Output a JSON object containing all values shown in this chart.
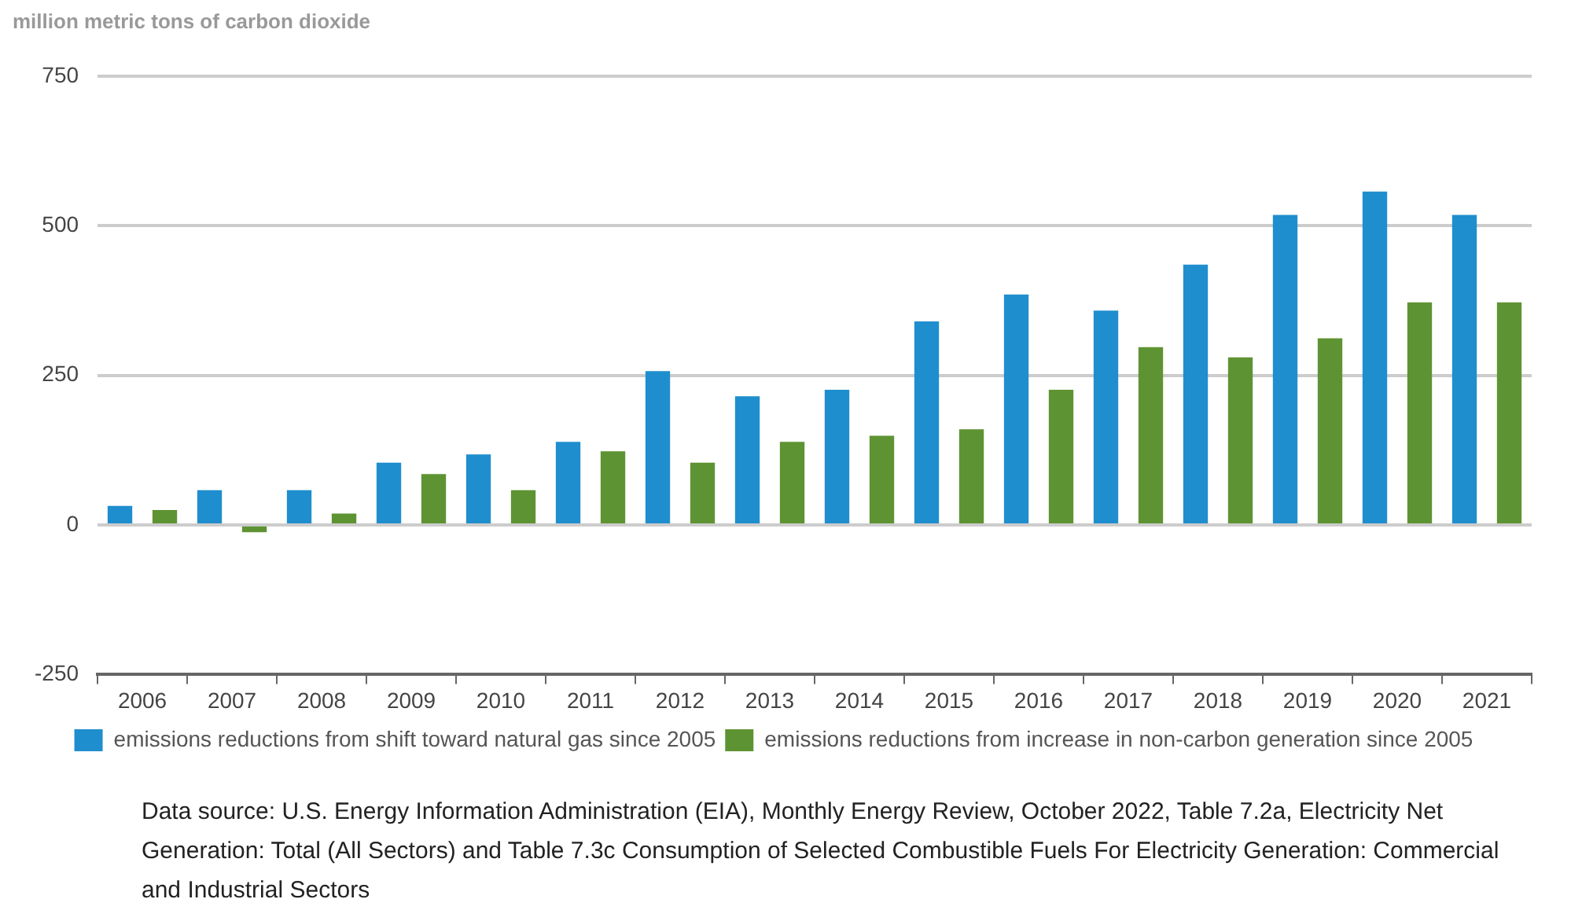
{
  "chart_data": {
    "type": "bar",
    "ylabel": "million metric tons of carbon dioxide",
    "categories": [
      "2006",
      "2007",
      "2008",
      "2009",
      "2010",
      "2011",
      "2012",
      "2013",
      "2014",
      "2015",
      "2016",
      "2017",
      "2018",
      "2019",
      "2020",
      "2021"
    ],
    "series": [
      {
        "name": "emissions reductions from shift toward natural gas since 2005",
        "color": "#1f8ece",
        "values": [
          32,
          58,
          58,
          104,
          118,
          139,
          257,
          215,
          226,
          340,
          385,
          358,
          435,
          518,
          557,
          518
        ]
      },
      {
        "name": "emissions reductions from increase in non-carbon generation since 2005",
        "color": "#5e9333",
        "values": [
          25,
          -12,
          19,
          85,
          58,
          123,
          104,
          139,
          149,
          160,
          226,
          297,
          280,
          312,
          372,
          372
        ]
      }
    ],
    "ylim": [
      -250,
      750
    ],
    "yticks": [
      -250,
      0,
      250,
      500,
      750
    ],
    "grid": "y",
    "legend": "bottom",
    "annotations": [
      "Data source: U.S. Energy Information Administration (EIA), Monthly Energy Review, October 2022, Table 7.2a, Electricity Net Generation: Total (All Sectors) and Table 7.3c Consumption of Selected Combustible Fuels For Electricity Generation: Commercial and Industrial Sectors"
    ]
  }
}
